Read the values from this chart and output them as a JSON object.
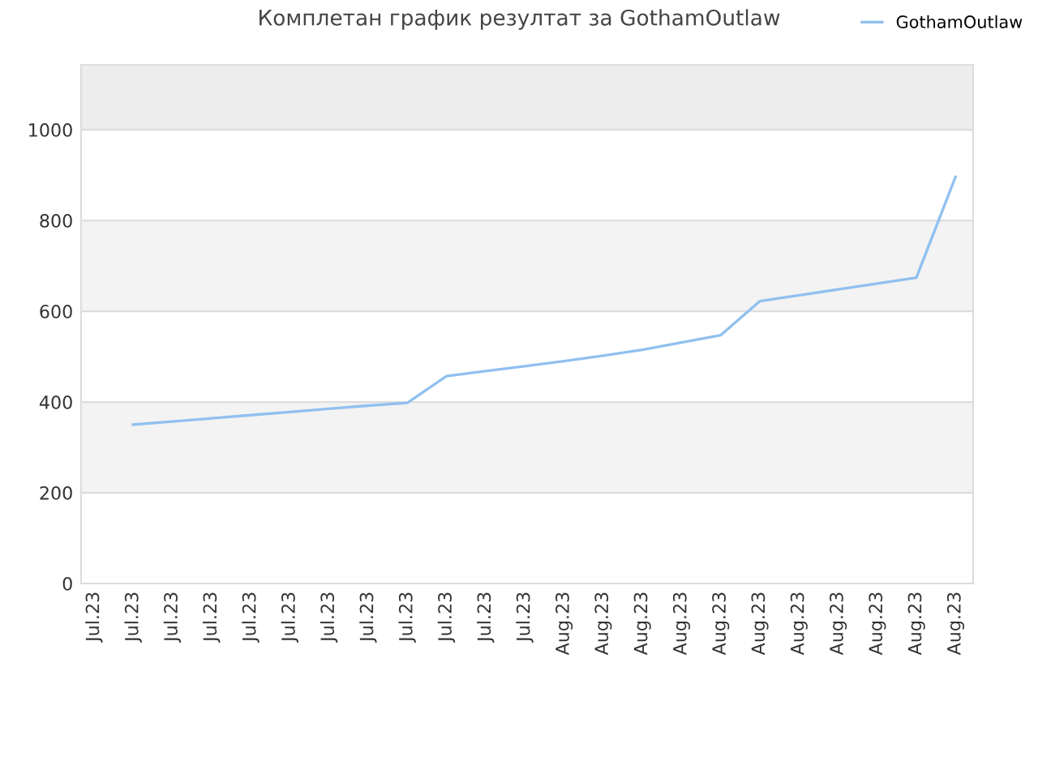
{
  "chart_data": {
    "type": "line",
    "title": "Комплетан график резултат за GothamOutlaw",
    "categories": [
      "Jul.23",
      "Jul.23",
      "Jul.23",
      "Jul.23",
      "Jul.23",
      "Jul.23",
      "Jul.23",
      "Jul.23",
      "Jul.23",
      "Jul.23",
      "Jul.23",
      "Jul.23",
      "Aug.23",
      "Aug.23",
      "Aug.23",
      "Aug.23",
      "Aug.23",
      "Aug.23",
      "Aug.23",
      "Aug.23",
      "Aug.23",
      "Aug.23",
      "Aug.23"
    ],
    "series": [
      {
        "name": "GothamOutlaw",
        "color": "#90c0f0",
        "values": [
          null,
          350,
          357,
          364,
          371,
          378,
          385,
          392,
          398,
          457,
          468,
          479,
          490,
          502,
          515,
          531,
          547,
          622,
          635,
          648,
          661,
          674,
          896
        ]
      }
    ],
    "ylim": [
      0,
      1143
    ],
    "yticks": [
      0,
      200,
      400,
      600,
      800,
      1000
    ],
    "bands": [
      {
        "axis": "y",
        "from": 200,
        "to": 400,
        "color": "#f3f3f3"
      },
      {
        "axis": "y",
        "from": 600,
        "to": 800,
        "color": "#f3f3f3"
      },
      {
        "axis": "y",
        "from": 1000,
        "to": 1143,
        "color": "#ededed"
      }
    ],
    "grid": "y",
    "legend": "top right",
    "marker": "none",
    "line_style": "solid"
  }
}
